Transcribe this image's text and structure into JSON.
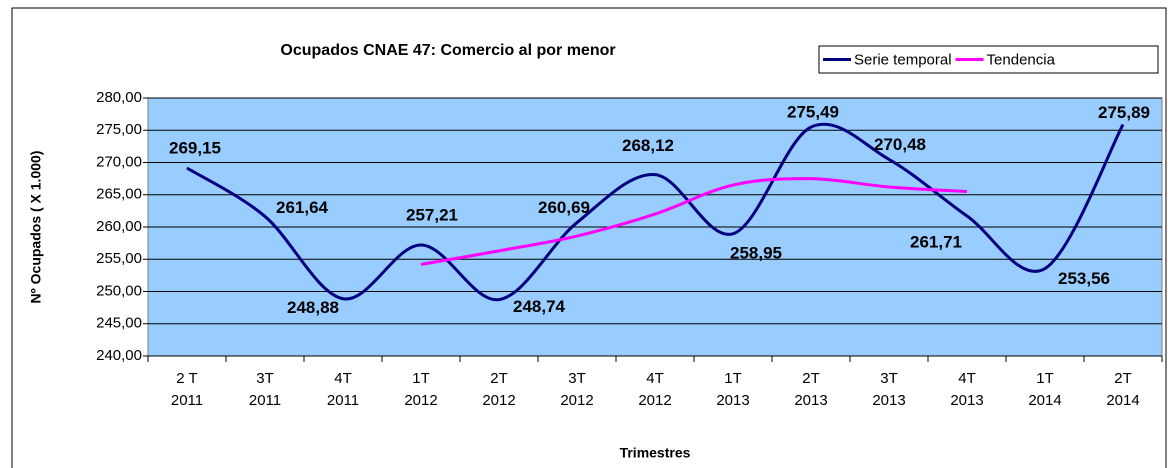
{
  "chart_data": {
    "type": "line",
    "title": "Ocupados CNAE 47: Comercio al por menor",
    "x_label": "Trimestres",
    "y_label": "Nº Ocupados ( X 1.000)",
    "categories": [
      "2 T\n2011",
      "3T\n2011",
      "4T\n2011",
      "1T\n2012",
      "2T\n2012",
      "3T\n2012",
      "4T\n2012",
      "1T\n2013",
      "2T\n2013",
      "3T\n2013",
      "4T\n2013",
      "1T\n2014",
      "2T\n2014"
    ],
    "series": [
      {
        "name": "Serie temporal",
        "color": "#000080",
        "values": [
          269.15,
          261.64,
          248.88,
          257.21,
          248.74,
          260.69,
          268.12,
          258.95,
          275.49,
          270.48,
          261.71,
          253.56,
          275.89
        ],
        "value_labels": [
          "269,15",
          "261,64",
          "248,88",
          "257,21",
          "248,74",
          "260,69",
          "268,12",
          "258,95",
          "275,49",
          "270,48",
          "261,71",
          "253,56",
          "275,89"
        ]
      },
      {
        "name": "Tendencia",
        "color": "#ff00ff",
        "values": [
          null,
          null,
          null,
          254.2,
          256.3,
          258.6,
          262.0,
          266.5,
          267.5,
          266.2,
          265.5,
          null,
          null
        ]
      }
    ],
    "ylim": [
      240,
      280
    ],
    "yticks": [
      {
        "value": 240,
        "label": "240,00"
      },
      {
        "value": 245,
        "label": "245,00"
      },
      {
        "value": 250,
        "label": "250,00"
      },
      {
        "value": 255,
        "label": "255,00"
      },
      {
        "value": 260,
        "label": "260,00"
      },
      {
        "value": 265,
        "label": "265,00"
      },
      {
        "value": 270,
        "label": "270,00"
      },
      {
        "value": 275,
        "label": "275,00"
      },
      {
        "value": 280,
        "label": "280,00"
      }
    ],
    "grid": true,
    "plot_background": "#99ccff",
    "legend": "top-right"
  }
}
